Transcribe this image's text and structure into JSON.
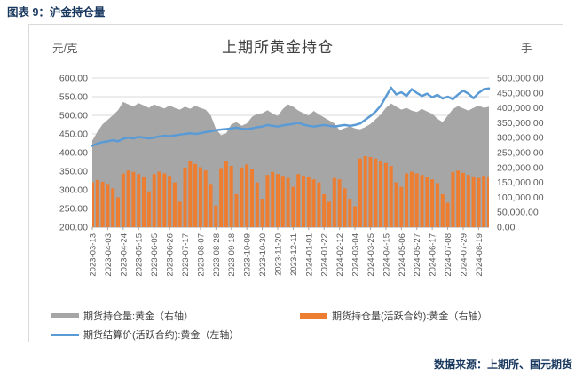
{
  "caption": "图表 9：沪金持仓量",
  "source": "数据来源：上期所、国元期货",
  "colors": {
    "heading": "#17375e",
    "area": "#a6a6a6",
    "bar": "#ed7d31",
    "line": "#5b9bd5",
    "gridline": "#d9d9d9",
    "axis_text": "#595959"
  },
  "chart_data": {
    "type": "combo",
    "title": "上期所黄金持仓",
    "grid": "horizontal",
    "legend_position": "bottom",
    "left_axis": {
      "unit": "元/克",
      "min": 200,
      "max": 600,
      "step": 50,
      "tick_labels": [
        "600.00",
        "550.00",
        "500.00",
        "450.00",
        "400.00",
        "350.00",
        "300.00",
        "250.00",
        "200.00"
      ]
    },
    "right_axis": {
      "unit": "手",
      "min": 0,
      "max": 500000,
      "step": 50000,
      "tick_labels": [
        "500,000.00",
        "450,000.00",
        "400,000.00",
        "350,000.00",
        "300,000.00",
        "250,000.00",
        "200,000.00",
        "150,000.00",
        "100,000.00",
        "50,000.00",
        "0.00"
      ]
    },
    "x_tick_labels": [
      "2023-03-13",
      "2023-04-03",
      "2023-04-24",
      "2023-05-15",
      "2023-06-05",
      "2023-06-26",
      "2023-07-17",
      "2023-08-07",
      "2023-08-28",
      "2023-09-18",
      "2023-10-09",
      "2023-10-30",
      "2023-11-20",
      "2023-12-11",
      "2024-01-01",
      "2024-01-22",
      "2024-02-12",
      "2024-03-04",
      "2024-03-25",
      "2024-04-15",
      "2024-05-06",
      "2024-05-27",
      "2024-06-17",
      "2024-07-08",
      "2024-07-29",
      "2024-08-19"
    ],
    "points_per_tick": 3,
    "series": [
      {
        "name": "期货持仓量:黄金（右轴）",
        "type": "area",
        "axis": "right",
        "color": "#a6a6a6",
        "values": [
          290000,
          320000,
          345000,
          360000,
          375000,
          392000,
          420000,
          412000,
          405000,
          416000,
          408000,
          400000,
          412000,
          404000,
          398000,
          408000,
          400000,
          394000,
          404000,
          397000,
          407000,
          400000,
          394000,
          375000,
          330000,
          308000,
          315000,
          345000,
          352000,
          340000,
          348000,
          370000,
          380000,
          382000,
          392000,
          381000,
          373000,
          396000,
          412000,
          404000,
          391000,
          382000,
          374000,
          390000,
          378000,
          368000,
          358000,
          348000,
          326000,
          332000,
          338000,
          331000,
          328000,
          336000,
          346000,
          362000,
          378000,
          400000,
          415000,
          404000,
          394000,
          400000,
          391000,
          386000,
          396000,
          388000,
          380000,
          364000,
          352000,
          374000,
          396000,
          406000,
          398000,
          391000,
          400000,
          408000,
          400000,
          404000
        ]
      },
      {
        "name": "期货持仓量(活跃合约):黄金（右轴）",
        "type": "bar",
        "axis": "right",
        "color": "#ed7d31",
        "values": [
          150000,
          158000,
          152000,
          145000,
          130000,
          100000,
          180000,
          190000,
          185000,
          178000,
          168000,
          120000,
          178000,
          186000,
          180000,
          172000,
          150000,
          85000,
          200000,
          221000,
          212000,
          201000,
          190000,
          145000,
          72000,
          198000,
          220000,
          205000,
          110000,
          200000,
          210000,
          195000,
          150000,
          95000,
          175000,
          185000,
          178000,
          172000,
          165000,
          135000,
          178000,
          172000,
          168000,
          160000,
          150000,
          110000,
          85000,
          165000,
          160000,
          130000,
          95000,
          70000,
          230000,
          238000,
          235000,
          230000,
          222000,
          215000,
          205000,
          150000,
          135000,
          180000,
          186000,
          180000,
          175000,
          168000,
          160000,
          148000,
          110000,
          82000,
          185000,
          190000,
          182000,
          175000,
          170000,
          165000,
          172000,
          168000
        ]
      },
      {
        "name": "期货结算价(活跃合约):黄金（左轴）",
        "type": "line",
        "axis": "left",
        "color": "#5b9bd5",
        "values": [
          418,
          424,
          428,
          430,
          433,
          430,
          437,
          440,
          438,
          442,
          440,
          438,
          440,
          443,
          445,
          444,
          446,
          448,
          450,
          452,
          450,
          452,
          455,
          457,
          460,
          462,
          463,
          465,
          467,
          464,
          463,
          465,
          468,
          470,
          474,
          472,
          470,
          473,
          475,
          477,
          480,
          475,
          472,
          470,
          472,
          474,
          472,
          470,
          472,
          474,
          472,
          474,
          478,
          488,
          498,
          510,
          526,
          550,
          574,
          556,
          562,
          552,
          570,
          560,
          552,
          558,
          548,
          555,
          545,
          550,
          543,
          556,
          566,
          558,
          546,
          560,
          570,
          572
        ]
      }
    ]
  }
}
